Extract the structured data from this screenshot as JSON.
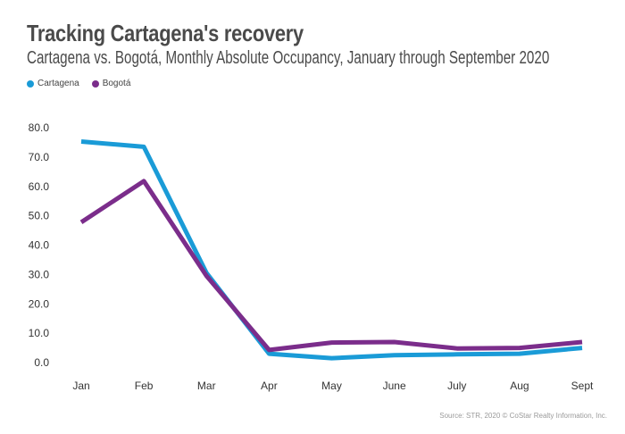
{
  "chart_data": {
    "type": "line",
    "title": "Tracking Cartagena's recovery",
    "subtitle": "Cartagena vs. Bogotá, Monthly Absolute Occupancy, January through September 2020",
    "categories": [
      "Jan",
      "Feb",
      "Mar",
      "Apr",
      "May",
      "June",
      "July",
      "Aug",
      "Sept"
    ],
    "series": [
      {
        "name": "Cartagena",
        "color": "#1a9bd7",
        "values": [
          75.3,
          73.5,
          30.5,
          3.0,
          1.5,
          2.5,
          2.8,
          3.0,
          5.0
        ]
      },
      {
        "name": "Bogotá",
        "color": "#7b2d8b",
        "values": [
          47.8,
          61.8,
          29.5,
          4.3,
          6.8,
          7.0,
          4.8,
          5.0,
          7.0
        ]
      }
    ],
    "yticks": [
      "0.0",
      "10.0",
      "20.0",
      "30.0",
      "40.0",
      "50.0",
      "60.0",
      "70.0",
      "80.0"
    ],
    "ylim": [
      0,
      80
    ],
    "xlabel": "",
    "ylabel": "",
    "grid": false,
    "legend_position": "top-left",
    "source": "Source: STR, 2020 © CoStar Realty Information, Inc."
  }
}
